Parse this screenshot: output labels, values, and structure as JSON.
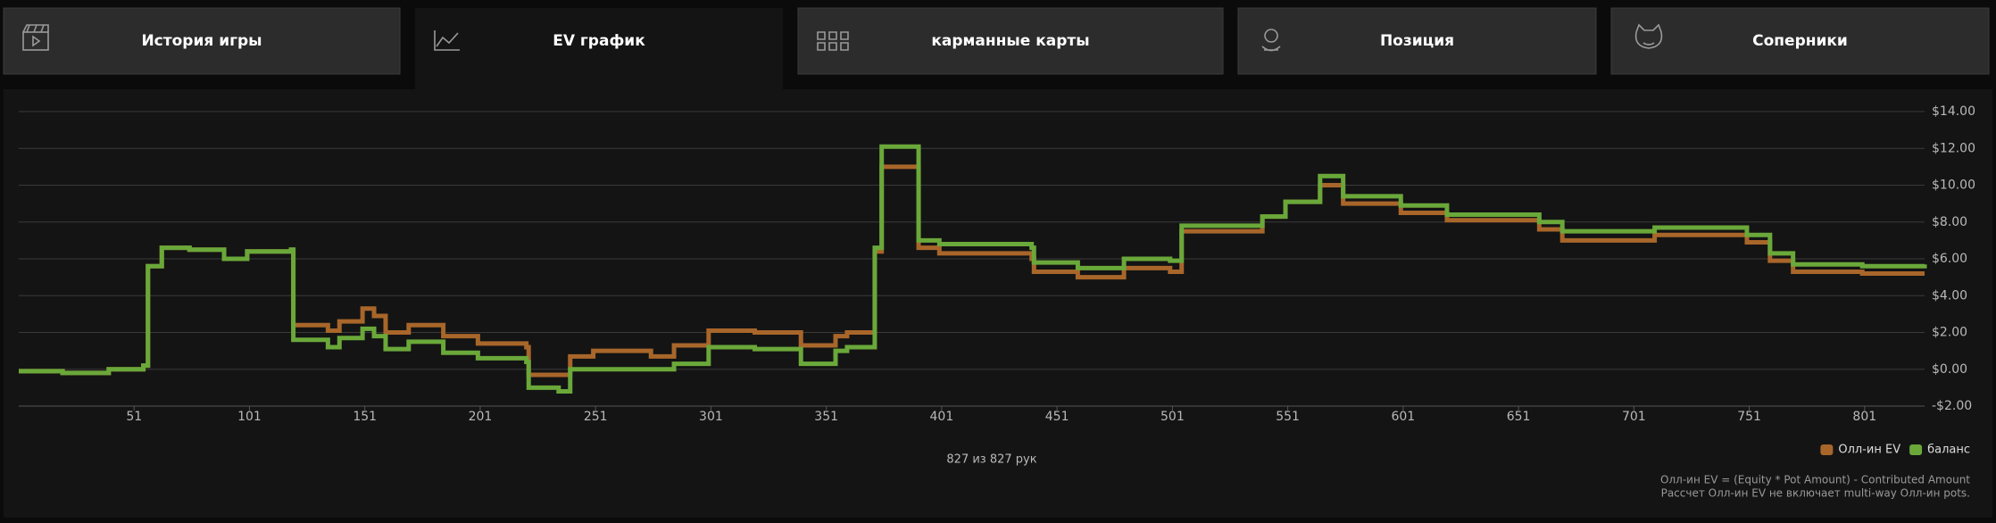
{
  "tabs": [
    {
      "label": "История игры",
      "active": false
    },
    {
      "label": "EV график",
      "active": true
    },
    {
      "label": "карманные карты",
      "active": false
    },
    {
      "label": "Позиция",
      "active": false
    },
    {
      "label": "Соперники",
      "active": false
    }
  ],
  "chart_data": {
    "type": "line",
    "step": true,
    "x": [
      1,
      20,
      40,
      55,
      57,
      63,
      75,
      90,
      100,
      119,
      120,
      135,
      140,
      150,
      155,
      160,
      170,
      185,
      200,
      221,
      222,
      235,
      240,
      250,
      275,
      285,
      300,
      320,
      340,
      355,
      360,
      371,
      372,
      375,
      390,
      391,
      400,
      440,
      441,
      460,
      480,
      500,
      505,
      540,
      550,
      565,
      575,
      580,
      600,
      620,
      660,
      670,
      710,
      750,
      760,
      770,
      800,
      827
    ],
    "series": [
      {
        "name": "Олл-ин EV",
        "color": "#a8662a",
        "values": [
          -0.1,
          -0.2,
          0.0,
          0.2,
          5.6,
          6.6,
          6.5,
          6.0,
          6.4,
          6.5,
          2.4,
          2.1,
          2.6,
          3.3,
          2.9,
          2.0,
          2.4,
          1.8,
          1.4,
          1.2,
          -0.3,
          -0.3,
          0.7,
          1.0,
          0.7,
          1.3,
          2.1,
          2.0,
          1.3,
          1.8,
          2.0,
          2.0,
          6.4,
          11.0,
          11.0,
          6.6,
          6.3,
          6.0,
          5.3,
          5.0,
          5.5,
          5.3,
          7.5,
          8.3,
          9.1,
          10.0,
          9.0,
          9.0,
          8.5,
          8.1,
          7.6,
          7.0,
          7.3,
          6.9,
          5.9,
          5.3,
          5.2,
          5.2
        ]
      },
      {
        "name": "баланс",
        "color": "#6aa83a",
        "values": [
          -0.1,
          -0.2,
          0.0,
          0.2,
          5.6,
          6.6,
          6.5,
          6.0,
          6.4,
          6.5,
          1.6,
          1.2,
          1.7,
          2.2,
          1.8,
          1.1,
          1.5,
          0.9,
          0.6,
          0.4,
          -1.0,
          -1.2,
          0.0,
          0.0,
          0.0,
          0.3,
          1.2,
          1.1,
          0.3,
          1.0,
          1.2,
          1.2,
          6.6,
          12.1,
          12.1,
          7.0,
          6.8,
          6.6,
          5.8,
          5.5,
          6.0,
          5.9,
          7.8,
          8.3,
          9.1,
          10.5,
          9.4,
          9.4,
          8.9,
          8.4,
          8.0,
          7.5,
          7.7,
          7.3,
          6.3,
          5.7,
          5.6,
          5.7
        ]
      }
    ],
    "xlim": [
      1,
      827
    ],
    "xticks": [
      51,
      101,
      151,
      201,
      251,
      301,
      351,
      401,
      451,
      501,
      551,
      601,
      651,
      701,
      751,
      801
    ],
    "ylim": [
      -2,
      14
    ],
    "yticks": [
      {
        "value": -2,
        "label": "-$2.00"
      },
      {
        "value": 0,
        "label": "$0.00"
      },
      {
        "value": 2,
        "label": "$2.00"
      },
      {
        "value": 4,
        "label": "$4.00"
      },
      {
        "value": 6,
        "label": "$6.00"
      },
      {
        "value": 8,
        "label": "$8.00"
      },
      {
        "value": 10,
        "label": "$10.00"
      },
      {
        "value": 12,
        "label": "$12.00"
      },
      {
        "value": 14,
        "label": "$14.00"
      }
    ],
    "grid": true,
    "legend": "bottom-right",
    "counter": "827 из 827 рук",
    "notes": [
      "Олл-ин EV = (Equity * Pot Amount) - Contributed Amount",
      "Рассчет Олл-ин EV не включает multi-way Олл-ин pots."
    ]
  }
}
